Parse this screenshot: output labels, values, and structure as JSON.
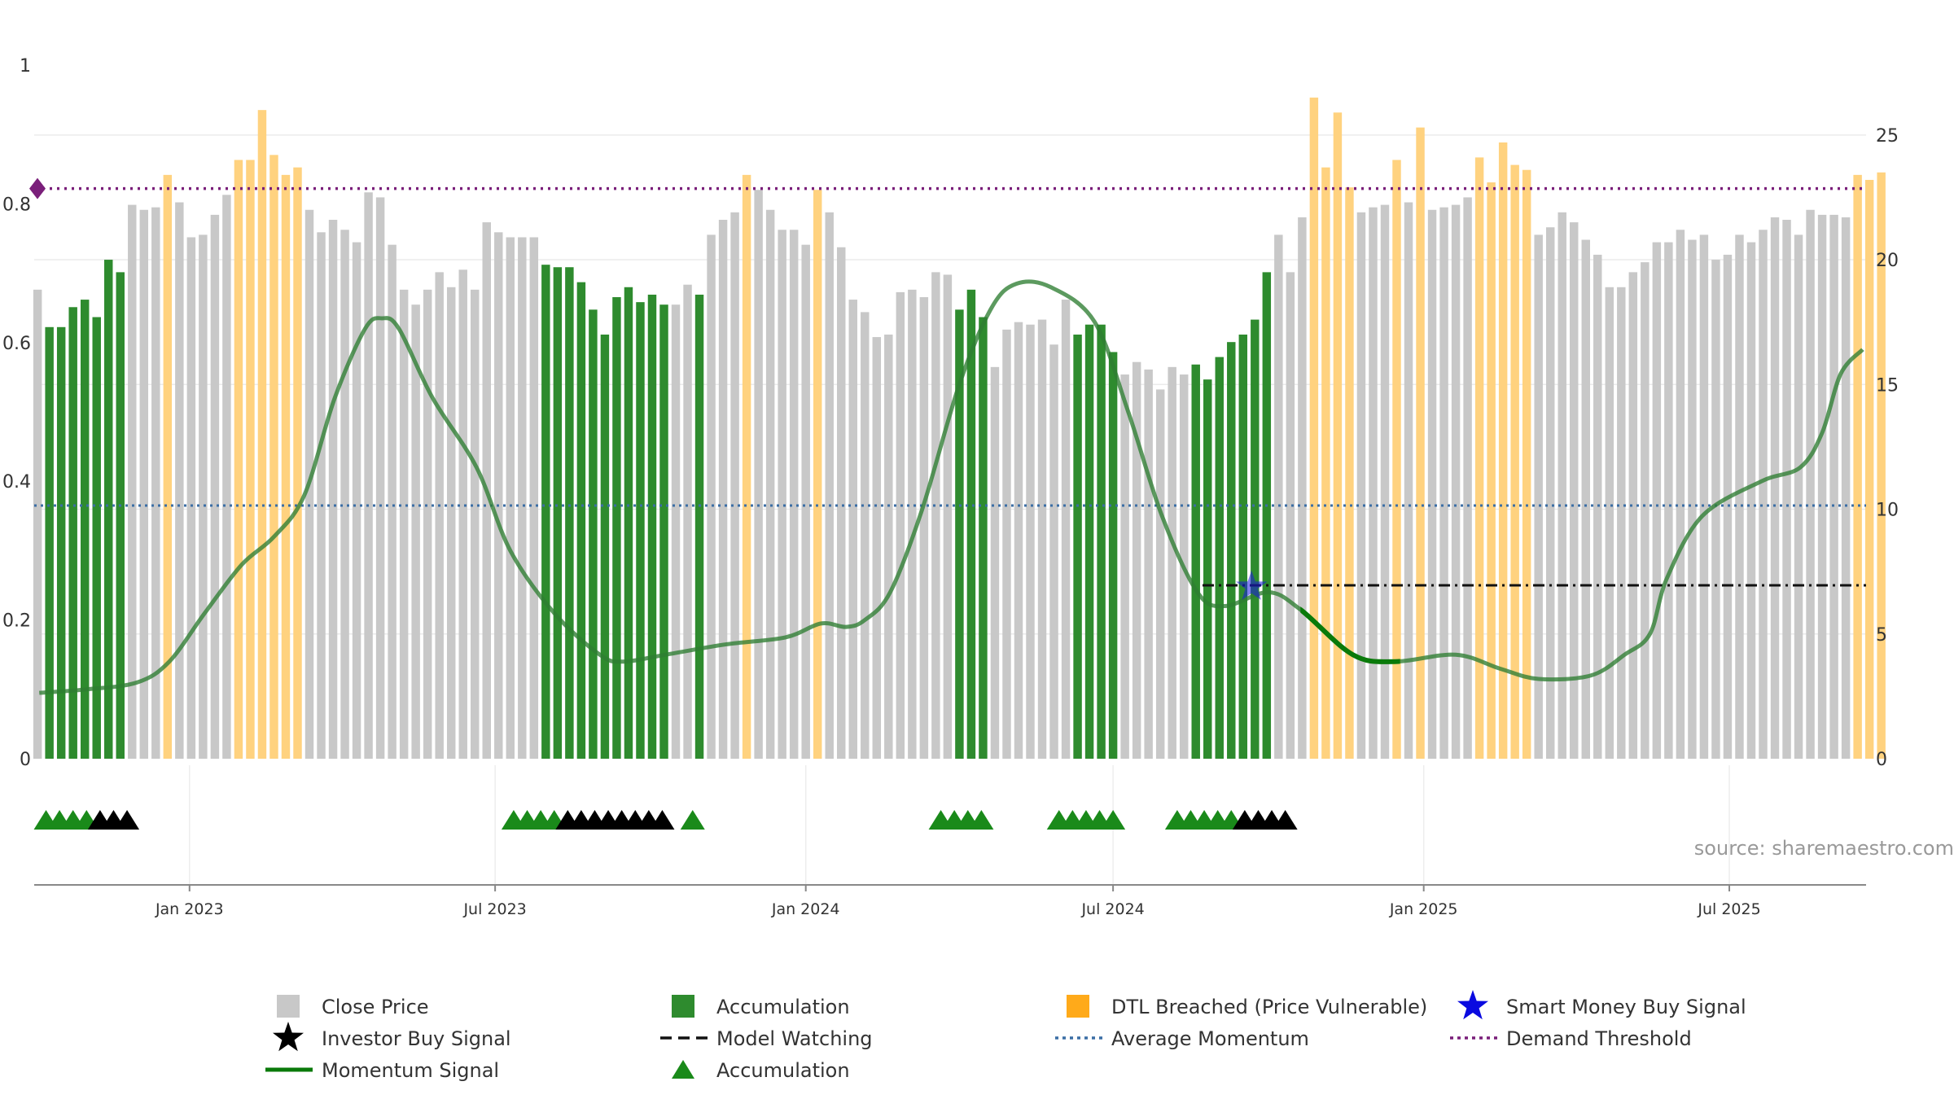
{
  "chart_data": {
    "type": "bar",
    "source": "source: sharemaestro.com",
    "colors": {
      "close_price": "#c8c8c8",
      "accumulation": "#2e8b2e",
      "dtl_breached": "#ffd27f",
      "momentum": "#2e7d32",
      "average_momentum": "#3b6ea5",
      "demand_threshold": "#7a1f7a",
      "model_watching": "#111111",
      "smart_money": "#1a1adf",
      "investor_buy": "#000000",
      "accum_marker": "#1a8a1a"
    },
    "left_axis": {
      "ylim": [
        0,
        1
      ],
      "ticks": [
        "0",
        "0.2",
        "0.4",
        "0.6",
        "0.8",
        "1"
      ]
    },
    "right_axis": {
      "ylim": [
        0,
        27.8
      ],
      "ticks": [
        "0",
        "5",
        "10",
        "15",
        "20",
        "25"
      ]
    },
    "x_axis": {
      "range": [
        "2022-10-01",
        "2025-09-20"
      ],
      "ticks": [
        {
          "date": "2023-01-01",
          "label": "Jan 2023"
        },
        {
          "date": "2023-07-01",
          "label": "Jul 2023"
        },
        {
          "date": "2024-01-01",
          "label": "Jan 2024"
        },
        {
          "date": "2024-07-01",
          "label": "Jul 2024"
        },
        {
          "date": "2025-01-01",
          "label": "Jan 2025"
        },
        {
          "date": "2025-07-01",
          "label": "Jul 2025"
        }
      ]
    },
    "bar_start_date": "2022-10-03",
    "bar_interval_days": 7,
    "bars": [
      [
        18.8,
        "g"
      ],
      [
        17.3,
        "a"
      ],
      [
        17.3,
        "a"
      ],
      [
        18.1,
        "a"
      ],
      [
        18.4,
        "a"
      ],
      [
        17.7,
        "a"
      ],
      [
        20.0,
        "a"
      ],
      [
        19.5,
        "a"
      ],
      [
        22.2,
        "g"
      ],
      [
        22.0,
        "g"
      ],
      [
        22.1,
        "g"
      ],
      [
        23.4,
        "d"
      ],
      [
        22.3,
        "g"
      ],
      [
        20.9,
        "g"
      ],
      [
        21.0,
        "g"
      ],
      [
        21.8,
        "g"
      ],
      [
        22.6,
        "g"
      ],
      [
        24.0,
        "d"
      ],
      [
        24.0,
        "d"
      ],
      [
        26.0,
        "d"
      ],
      [
        24.2,
        "d"
      ],
      [
        23.4,
        "d"
      ],
      [
        23.7,
        "d"
      ],
      [
        22.0,
        "g"
      ],
      [
        21.1,
        "g"
      ],
      [
        21.6,
        "g"
      ],
      [
        21.2,
        "g"
      ],
      [
        20.7,
        "g"
      ],
      [
        22.7,
        "g"
      ],
      [
        22.5,
        "g"
      ],
      [
        20.6,
        "g"
      ],
      [
        18.8,
        "g"
      ],
      [
        18.2,
        "g"
      ],
      [
        18.8,
        "g"
      ],
      [
        19.5,
        "g"
      ],
      [
        18.9,
        "g"
      ],
      [
        19.6,
        "g"
      ],
      [
        18.8,
        "g"
      ],
      [
        21.5,
        "g"
      ],
      [
        21.1,
        "g"
      ],
      [
        20.9,
        "g"
      ],
      [
        20.9,
        "g"
      ],
      [
        20.9,
        "g"
      ],
      [
        19.8,
        "a"
      ],
      [
        19.7,
        "a"
      ],
      [
        19.7,
        "a"
      ],
      [
        19.1,
        "a"
      ],
      [
        18.0,
        "a"
      ],
      [
        17.0,
        "a"
      ],
      [
        18.5,
        "a"
      ],
      [
        18.9,
        "a"
      ],
      [
        18.3,
        "a"
      ],
      [
        18.6,
        "a"
      ],
      [
        18.2,
        "a"
      ],
      [
        18.2,
        "g"
      ],
      [
        19.0,
        "g"
      ],
      [
        18.6,
        "a"
      ],
      [
        21.0,
        "g"
      ],
      [
        21.6,
        "g"
      ],
      [
        21.9,
        "g"
      ],
      [
        23.4,
        "d"
      ],
      [
        22.8,
        "g"
      ],
      [
        22.0,
        "g"
      ],
      [
        21.2,
        "g"
      ],
      [
        21.2,
        "g"
      ],
      [
        20.6,
        "g"
      ],
      [
        22.8,
        "d"
      ],
      [
        21.9,
        "g"
      ],
      [
        20.5,
        "g"
      ],
      [
        18.4,
        "g"
      ],
      [
        17.9,
        "g"
      ],
      [
        16.9,
        "g"
      ],
      [
        17.0,
        "g"
      ],
      [
        18.7,
        "g"
      ],
      [
        18.8,
        "g"
      ],
      [
        18.5,
        "g"
      ],
      [
        19.5,
        "g"
      ],
      [
        19.4,
        "g"
      ],
      [
        18.0,
        "a"
      ],
      [
        18.8,
        "a"
      ],
      [
        17.7,
        "a"
      ],
      [
        15.7,
        "g"
      ],
      [
        17.2,
        "g"
      ],
      [
        17.5,
        "g"
      ],
      [
        17.4,
        "g"
      ],
      [
        17.6,
        "g"
      ],
      [
        16.6,
        "g"
      ],
      [
        18.4,
        "g"
      ],
      [
        17.0,
        "a"
      ],
      [
        17.4,
        "a"
      ],
      [
        17.4,
        "a"
      ],
      [
        16.3,
        "a"
      ],
      [
        15.4,
        "g"
      ],
      [
        15.9,
        "g"
      ],
      [
        15.6,
        "g"
      ],
      [
        14.8,
        "g"
      ],
      [
        15.7,
        "g"
      ],
      [
        15.4,
        "g"
      ],
      [
        15.8,
        "a"
      ],
      [
        15.2,
        "a"
      ],
      [
        16.1,
        "a"
      ],
      [
        16.7,
        "a"
      ],
      [
        17.0,
        "a"
      ],
      [
        17.6,
        "a"
      ],
      [
        19.5,
        "a"
      ],
      [
        21.0,
        "g"
      ],
      [
        19.5,
        "g"
      ],
      [
        21.7,
        "g"
      ],
      [
        26.5,
        "d"
      ],
      [
        23.7,
        "d"
      ],
      [
        25.9,
        "d"
      ],
      [
        22.9,
        "d"
      ],
      [
        21.9,
        "g"
      ],
      [
        22.1,
        "g"
      ],
      [
        22.2,
        "g"
      ],
      [
        24.0,
        "d"
      ],
      [
        22.3,
        "g"
      ],
      [
        25.3,
        "d"
      ],
      [
        22.0,
        "g"
      ],
      [
        22.1,
        "g"
      ],
      [
        22.2,
        "g"
      ],
      [
        22.5,
        "g"
      ],
      [
        24.1,
        "d"
      ],
      [
        23.1,
        "d"
      ],
      [
        24.7,
        "d"
      ],
      [
        23.8,
        "d"
      ],
      [
        23.6,
        "d"
      ],
      [
        21.0,
        "g"
      ],
      [
        21.3,
        "g"
      ],
      [
        21.9,
        "g"
      ],
      [
        21.5,
        "g"
      ],
      [
        20.8,
        "g"
      ],
      [
        20.2,
        "g"
      ],
      [
        18.9,
        "g"
      ],
      [
        18.9,
        "g"
      ],
      [
        19.5,
        "g"
      ],
      [
        19.9,
        "g"
      ],
      [
        20.7,
        "g"
      ],
      [
        20.7,
        "g"
      ],
      [
        21.2,
        "g"
      ],
      [
        20.8,
        "g"
      ],
      [
        21.0,
        "g"
      ],
      [
        20.0,
        "g"
      ],
      [
        20.2,
        "g"
      ],
      [
        21.0,
        "g"
      ],
      [
        20.7,
        "g"
      ],
      [
        21.2,
        "g"
      ],
      [
        21.7,
        "g"
      ],
      [
        21.6,
        "g"
      ],
      [
        21.0,
        "g"
      ],
      [
        22.0,
        "g"
      ],
      [
        21.8,
        "g"
      ],
      [
        21.8,
        "g"
      ],
      [
        21.7,
        "g"
      ],
      [
        23.4,
        "d"
      ],
      [
        23.2,
        "d"
      ],
      [
        23.5,
        "d"
      ]
    ],
    "momentum_signal": [
      [
        "2022-10-04",
        0.095
      ],
      [
        "2022-11-01",
        0.1
      ],
      [
        "2022-12-01",
        0.11
      ],
      [
        "2022-12-20",
        0.14
      ],
      [
        "2023-01-10",
        0.21
      ],
      [
        "2023-02-01",
        0.28
      ],
      [
        "2023-02-20",
        0.32
      ],
      [
        "2023-03-10",
        0.38
      ],
      [
        "2023-03-28",
        0.52
      ],
      [
        "2023-04-15",
        0.62
      ],
      [
        "2023-04-25",
        0.635
      ],
      [
        "2023-05-05",
        0.62
      ],
      [
        "2023-05-25",
        0.52
      ],
      [
        "2023-06-20",
        0.42
      ],
      [
        "2023-07-10",
        0.3
      ],
      [
        "2023-08-05",
        0.21
      ],
      [
        "2023-09-01",
        0.15
      ],
      [
        "2023-09-15",
        0.14
      ],
      [
        "2023-10-10",
        0.15
      ],
      [
        "2023-11-15",
        0.165
      ],
      [
        "2023-12-20",
        0.175
      ],
      [
        "2024-01-10",
        0.195
      ],
      [
        "2024-01-25",
        0.19
      ],
      [
        "2024-02-05",
        0.2
      ],
      [
        "2024-02-20",
        0.24
      ],
      [
        "2024-03-10",
        0.36
      ],
      [
        "2024-04-01",
        0.54
      ],
      [
        "2024-04-20",
        0.65
      ],
      [
        "2024-05-05",
        0.685
      ],
      [
        "2024-05-25",
        0.68
      ],
      [
        "2024-06-20",
        0.63
      ],
      [
        "2024-07-10",
        0.5
      ],
      [
        "2024-07-30",
        0.35
      ],
      [
        "2024-08-20",
        0.24
      ],
      [
        "2024-09-05",
        0.22
      ],
      [
        "2024-10-01",
        0.24
      ],
      [
        "2024-10-20",
        0.215
      ],
      [
        "2024-11-20",
        0.15
      ],
      [
        "2024-12-15",
        0.14
      ],
      [
        "2025-01-20",
        0.15
      ],
      [
        "2025-02-15",
        0.13
      ],
      [
        "2025-03-10",
        0.115
      ],
      [
        "2025-04-10",
        0.12
      ],
      [
        "2025-04-30",
        0.15
      ],
      [
        "2025-05-15",
        0.18
      ],
      [
        "2025-05-25",
        0.26
      ],
      [
        "2025-06-15",
        0.35
      ],
      [
        "2025-07-20",
        0.4
      ],
      [
        "2025-08-12",
        0.42
      ],
      [
        "2025-08-25",
        0.47
      ],
      [
        "2025-09-05",
        0.555
      ],
      [
        "2025-09-18",
        0.59
      ]
    ],
    "momentum_highlight_segments": [
      [
        "2024-10-20",
        "2024-12-18"
      ]
    ],
    "average_momentum": 0.365,
    "demand_threshold": 0.822,
    "model_watching": {
      "from": "2024-08-23",
      "to": "2025-09-20",
      "value": 0.25
    },
    "smart_money_buy": {
      "date": "2024-09-21",
      "value": 0.248
    },
    "signal_markers": [
      [
        "2022-10-08",
        "accumulation"
      ],
      [
        "2022-10-16",
        "accumulation"
      ],
      [
        "2022-10-24",
        "accumulation"
      ],
      [
        "2022-11-01",
        "accumulation"
      ],
      [
        "2022-11-09",
        "investor"
      ],
      [
        "2022-11-17",
        "investor"
      ],
      [
        "2022-11-25",
        "investor"
      ],
      [
        "2023-07-12",
        "accumulation"
      ],
      [
        "2023-07-20",
        "accumulation"
      ],
      [
        "2023-07-28",
        "accumulation"
      ],
      [
        "2023-08-05",
        "accumulation"
      ],
      [
        "2023-08-13",
        "investor"
      ],
      [
        "2023-08-21",
        "investor"
      ],
      [
        "2023-08-29",
        "investor"
      ],
      [
        "2023-09-06",
        "investor"
      ],
      [
        "2023-09-14",
        "investor"
      ],
      [
        "2023-09-22",
        "investor"
      ],
      [
        "2023-09-30",
        "investor"
      ],
      [
        "2023-10-08",
        "investor"
      ],
      [
        "2023-10-26",
        "accumulation"
      ],
      [
        "2024-03-21",
        "accumulation"
      ],
      [
        "2024-03-29",
        "accumulation"
      ],
      [
        "2024-04-06",
        "accumulation"
      ],
      [
        "2024-04-14",
        "accumulation"
      ],
      [
        "2024-05-30",
        "accumulation"
      ],
      [
        "2024-06-07",
        "accumulation"
      ],
      [
        "2024-06-15",
        "accumulation"
      ],
      [
        "2024-06-23",
        "accumulation"
      ],
      [
        "2024-07-01",
        "accumulation"
      ],
      [
        "2024-08-08",
        "accumulation"
      ],
      [
        "2024-08-16",
        "accumulation"
      ],
      [
        "2024-08-24",
        "accumulation"
      ],
      [
        "2024-09-01",
        "accumulation"
      ],
      [
        "2024-09-09",
        "accumulation"
      ],
      [
        "2024-09-17",
        "investor"
      ],
      [
        "2024-09-25",
        "investor"
      ],
      [
        "2024-10-03",
        "investor"
      ],
      [
        "2024-10-11",
        "investor"
      ]
    ],
    "legend": [
      {
        "key": "close_price",
        "label": "Close Price",
        "symbol": "square"
      },
      {
        "key": "accumulation_bar",
        "label": "Accumulation",
        "symbol": "square"
      },
      {
        "key": "dtl_breached",
        "label": "DTL Breached (Price Vulnerable)",
        "symbol": "square"
      },
      {
        "key": "smart_money",
        "label": "Smart Money Buy Signal",
        "symbol": "star"
      },
      {
        "key": "investor_buy",
        "label": "Investor Buy Signal",
        "symbol": "star"
      },
      {
        "key": "model_watching",
        "label": "Model Watching",
        "symbol": "dash"
      },
      {
        "key": "average_momentum",
        "label": "Average Momentum",
        "symbol": "dot"
      },
      {
        "key": "demand_threshold",
        "label": "Demand Threshold",
        "symbol": "dot"
      },
      {
        "key": "momentum",
        "label": "Momentum Signal",
        "symbol": "line"
      },
      {
        "key": "accum_marker",
        "label": "Accumulation",
        "symbol": "triangle"
      }
    ]
  }
}
